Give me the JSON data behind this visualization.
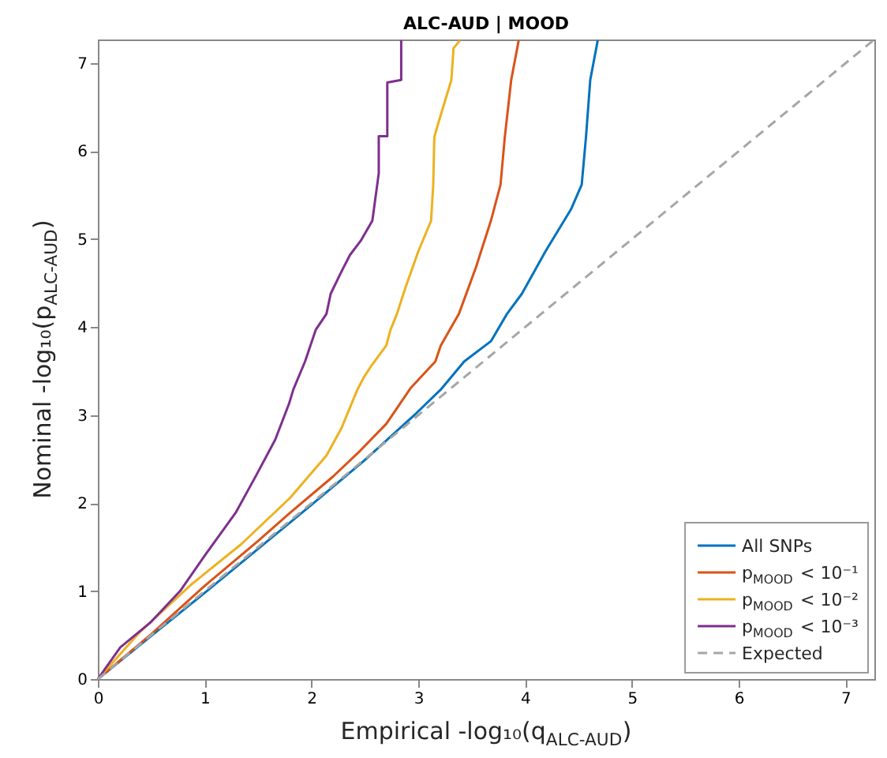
{
  "chart_data": {
    "type": "line",
    "title": "ALC-AUD | MOOD",
    "xlabel": "Empirical -log₁₀(q$_{ALC-AUD}$)",
    "ylabel": "Nominal -log₁₀(p$_{ALC-AUD}$)",
    "xlim": [
      0,
      7.27
    ],
    "ylim": [
      0,
      7.27
    ],
    "xticks": [
      0,
      1,
      2,
      3,
      4,
      5,
      6,
      7
    ],
    "yticks": [
      0,
      1,
      2,
      3,
      4,
      5,
      6,
      7
    ],
    "grid": false,
    "legend": "bottom right",
    "line_style": "solid",
    "series": [
      {
        "name": "All SNPs",
        "color": "#0072bd",
        "x": [
          0,
          0.5,
          1,
          1.5,
          2,
          2.5,
          2.98,
          3.21,
          3.43,
          3.68,
          3.83,
          3.97,
          4.19,
          4.43,
          4.53,
          4.57,
          4.61,
          4.68
        ],
        "values": [
          0,
          0.49,
          0.98,
          1.48,
          1.98,
          2.49,
          3.02,
          3.29,
          3.61,
          3.84,
          4.15,
          4.38,
          4.86,
          5.34,
          5.62,
          6.16,
          6.81,
          7.26
        ]
      },
      {
        "name": "p$_{MOOD}$ < 10⁻¹",
        "color": "#d95319",
        "x": [
          0,
          0.5,
          1.01,
          1.5,
          1.8,
          2.2,
          2.46,
          2.7,
          2.93,
          3.16,
          3.21,
          3.38,
          3.54,
          3.68,
          3.77,
          3.81,
          3.87,
          3.94
        ],
        "values": [
          0,
          0.51,
          1.07,
          1.57,
          1.89,
          2.3,
          2.6,
          2.9,
          3.31,
          3.61,
          3.79,
          4.15,
          4.68,
          5.21,
          5.62,
          6.16,
          6.81,
          7.26
        ]
      },
      {
        "name": "p$_{MOOD}$ < 10⁻²",
        "color": "#edb120",
        "x": [
          0,
          0.39,
          0.87,
          1.34,
          1.8,
          2.14,
          2.28,
          2.43,
          2.49,
          2.56,
          2.7,
          2.74,
          2.8,
          2.88,
          3.0,
          3.12,
          3.14,
          3.15,
          3.19,
          3.31,
          3.33,
          3.39
        ],
        "values": [
          0,
          0.53,
          1.07,
          1.53,
          2.06,
          2.54,
          2.85,
          3.29,
          3.43,
          3.56,
          3.79,
          3.97,
          4.15,
          4.45,
          4.86,
          5.21,
          5.62,
          6.16,
          6.33,
          6.81,
          7.17,
          7.26
        ]
      },
      {
        "name": "p$_{MOOD}$ < 10⁻³",
        "color": "#7e2f8e",
        "x": [
          0,
          0.21,
          0.49,
          0.77,
          1.01,
          1.29,
          1.48,
          1.66,
          1.79,
          1.83,
          1.94,
          2.04,
          2.14,
          2.18,
          2.28,
          2.36,
          2.46,
          2.57,
          2.63,
          2.63,
          2.71,
          2.71,
          2.84,
          2.84
        ],
        "values": [
          0,
          0.36,
          0.64,
          1.0,
          1.42,
          1.89,
          2.31,
          2.72,
          3.13,
          3.29,
          3.61,
          3.97,
          4.15,
          4.38,
          4.63,
          4.82,
          4.98,
          5.21,
          5.75,
          6.17,
          6.17,
          6.78,
          6.81,
          7.26
        ]
      },
      {
        "name": "Expected",
        "color": "#a6a6a6",
        "line_style": "dashed",
        "x": [
          0,
          7.27
        ],
        "values": [
          0,
          7.27
        ]
      }
    ]
  }
}
